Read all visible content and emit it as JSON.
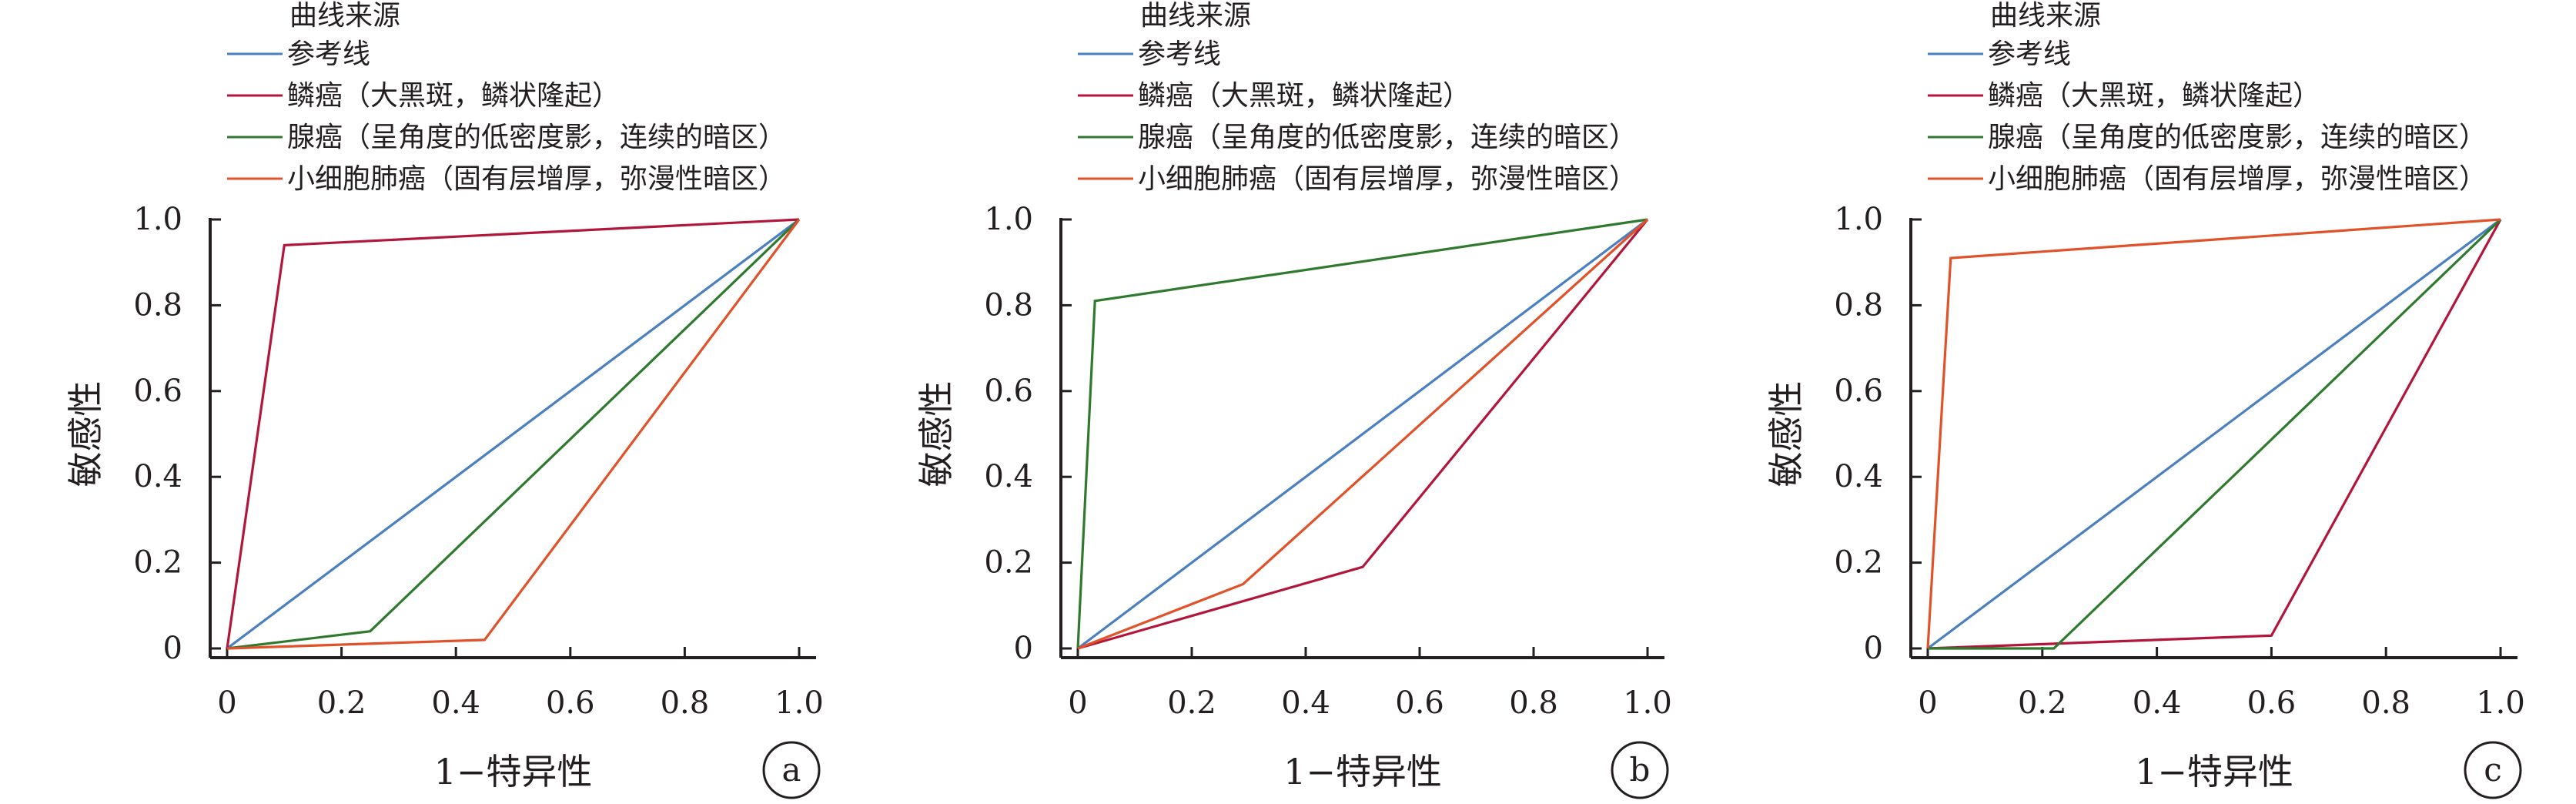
{
  "colors": {
    "reference": "#4a7fc1",
    "squamous": "#b2163a",
    "adeno": "#2f7a2f",
    "small_cell": "#e0522a",
    "axis": "#231f20"
  },
  "chart_data": [
    {
      "type": "line",
      "panel_label": "a",
      "legend_title": "曲线来源",
      "legend_placement": "top",
      "xlabel": "1−特异性",
      "ylabel": "敏感性",
      "xlim": [
        0,
        1
      ],
      "ylim": [
        0,
        1
      ],
      "xticks": [
        "0",
        "0.2",
        "0.4",
        "0.6",
        "0.8",
        "1.0"
      ],
      "yticks": [
        "0",
        "0.2",
        "0.4",
        "0.6",
        "0.8",
        "1.0"
      ],
      "grid": false,
      "series": [
        {
          "name": "参考线",
          "color": "#4a7fc1",
          "points": [
            [
              0,
              0
            ],
            [
              1,
              1
            ]
          ]
        },
        {
          "name": "鳞癌（大黑斑，鳞状隆起）",
          "color": "#b2163a",
          "points": [
            [
              0,
              0
            ],
            [
              0.1,
              0.94
            ],
            [
              1,
              1
            ]
          ]
        },
        {
          "name": "腺癌（呈角度的低密度影，连续的暗区）",
          "color": "#2f7a2f",
          "points": [
            [
              0,
              0
            ],
            [
              0.25,
              0.04
            ],
            [
              1,
              1
            ]
          ]
        },
        {
          "name": "小细胞肺癌（固有层增厚，弥漫性暗区）",
          "color": "#e0522a",
          "points": [
            [
              0,
              0
            ],
            [
              0.45,
              0.02
            ],
            [
              1,
              1
            ]
          ]
        }
      ]
    },
    {
      "type": "line",
      "panel_label": "b",
      "legend_title": "曲线来源",
      "legend_placement": "top",
      "xlabel": "1−特异性",
      "ylabel": "敏感性",
      "xlim": [
        0,
        1
      ],
      "ylim": [
        0,
        1
      ],
      "xticks": [
        "0",
        "0.2",
        "0.4",
        "0.6",
        "0.8",
        "1.0"
      ],
      "yticks": [
        "0",
        "0.2",
        "0.4",
        "0.6",
        "0.8",
        "1.0"
      ],
      "grid": false,
      "series": [
        {
          "name": "参考线",
          "color": "#4a7fc1",
          "points": [
            [
              0,
              0
            ],
            [
              1,
              1
            ]
          ]
        },
        {
          "name": "鳞癌（大黑斑，鳞状隆起）",
          "color": "#b2163a",
          "points": [
            [
              0,
              0
            ],
            [
              0.5,
              0.19
            ],
            [
              1,
              1
            ]
          ]
        },
        {
          "name": "腺癌（呈角度的低密度影，连续的暗区）",
          "color": "#2f7a2f",
          "points": [
            [
              0,
              0
            ],
            [
              0.03,
              0.81
            ],
            [
              1,
              1
            ]
          ]
        },
        {
          "name": "小细胞肺癌（固有层增厚，弥漫性暗区）",
          "color": "#e0522a",
          "points": [
            [
              0,
              0
            ],
            [
              0.29,
              0.15
            ],
            [
              1,
              1
            ]
          ]
        }
      ]
    },
    {
      "type": "line",
      "panel_label": "c",
      "legend_title": "曲线来源",
      "legend_placement": "top",
      "xlabel": "1−特异性",
      "ylabel": "敏感性",
      "xlim": [
        0,
        1
      ],
      "ylim": [
        0,
        1
      ],
      "xticks": [
        "0",
        "0.2",
        "0.4",
        "0.6",
        "0.8",
        "1.0"
      ],
      "yticks": [
        "0",
        "0.2",
        "0.4",
        "0.6",
        "0.8",
        "1.0"
      ],
      "grid": false,
      "series": [
        {
          "name": "参考线",
          "color": "#4a7fc1",
          "points": [
            [
              0,
              0
            ],
            [
              1,
              1
            ]
          ]
        },
        {
          "name": "鳞癌（大黑斑，鳞状隆起）",
          "color": "#b2163a",
          "points": [
            [
              0,
              0
            ],
            [
              0.6,
              0.03
            ],
            [
              1,
              1
            ]
          ]
        },
        {
          "name": "腺癌（呈角度的低密度影，连续的暗区）",
          "color": "#2f7a2f",
          "points": [
            [
              0,
              0
            ],
            [
              0.22,
              0
            ],
            [
              1,
              1
            ]
          ]
        },
        {
          "name": "小细胞肺癌（固有层增厚，弥漫性暗区）",
          "color": "#e0522a",
          "points": [
            [
              0,
              0
            ],
            [
              0.04,
              0.91
            ],
            [
              1,
              1
            ]
          ]
        }
      ]
    }
  ]
}
